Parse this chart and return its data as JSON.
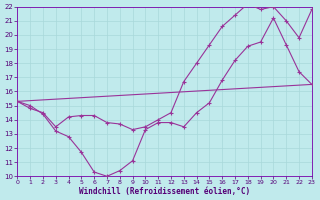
{
  "xlabel": "Windchill (Refroidissement éolien,°C)",
  "bg_color": "#c0eaec",
  "grid_color": "#a8d8da",
  "line_color": "#993399",
  "spine_color": "#7700aa",
  "tick_color": "#550077",
  "xlim": [
    0,
    23
  ],
  "ylim": [
    10,
    22
  ],
  "xticks": [
    0,
    1,
    2,
    3,
    4,
    5,
    6,
    7,
    8,
    9,
    10,
    11,
    12,
    13,
    14,
    15,
    16,
    17,
    18,
    19,
    20,
    21,
    22,
    23
  ],
  "yticks": [
    10,
    11,
    12,
    13,
    14,
    15,
    16,
    17,
    18,
    19,
    20,
    21,
    22
  ],
  "series1_x": [
    0,
    1,
    2,
    3,
    4,
    5,
    6,
    7,
    8,
    9,
    10,
    11,
    12,
    13,
    14,
    15,
    16,
    17,
    18,
    19,
    20,
    21,
    22,
    23
  ],
  "series1_y": [
    15.3,
    15.0,
    14.4,
    13.2,
    12.8,
    11.7,
    10.3,
    10.0,
    10.4,
    11.1,
    13.3,
    13.8,
    13.8,
    13.5,
    14.5,
    15.2,
    16.8,
    18.2,
    19.2,
    19.5,
    21.2,
    19.3,
    17.4,
    16.5
  ],
  "series2_x": [
    0,
    1,
    2,
    3,
    4,
    5,
    6,
    7,
    8,
    9,
    10,
    11,
    12,
    13,
    14,
    15,
    16,
    17,
    18,
    19,
    20,
    21,
    22,
    23
  ],
  "series2_y": [
    15.3,
    14.8,
    14.5,
    13.5,
    14.2,
    14.3,
    14.3,
    13.8,
    13.7,
    13.3,
    13.5,
    14.0,
    14.5,
    16.7,
    18.0,
    19.3,
    20.6,
    21.4,
    22.2,
    21.8,
    22.0,
    21.0,
    19.8,
    21.8
  ],
  "series3_x": [
    0,
    23
  ],
  "series3_y": [
    15.3,
    16.5
  ]
}
